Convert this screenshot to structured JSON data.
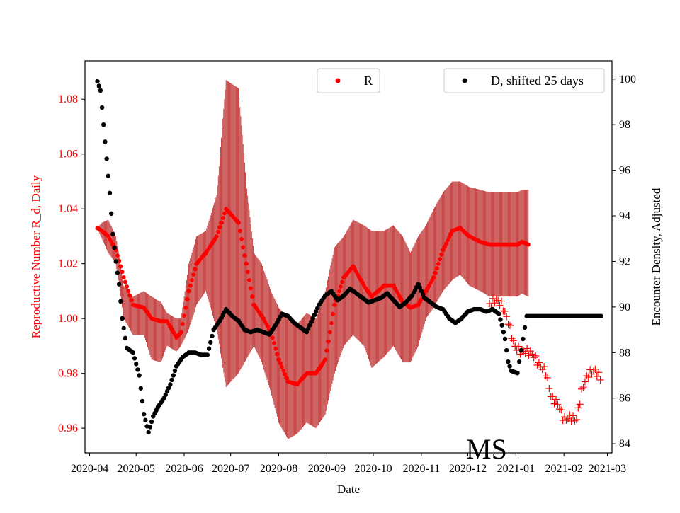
{
  "chart_data": {
    "type": "scatter",
    "title": "",
    "xlabel": "Date",
    "ylabel_left": "Reproductive Number R_d, Daily",
    "ylabel_right": "Encounter Density, Adjusted",
    "watermark": "MS",
    "colors": {
      "r": "#ff0000",
      "r_band": "#b00000",
      "d": "#000000",
      "left_axis": "#ff0000"
    },
    "x_ticks": [
      "2020-04",
      "2020-05",
      "2020-06",
      "2020-07",
      "2020-08",
      "2020-09",
      "2020-10",
      "2020-11",
      "2020-12",
      "2021-01",
      "2021-02",
      "2021-03"
    ],
    "xlim": [
      -3,
      337
    ],
    "ylim_left": [
      0.951,
      1.094
    ],
    "ylim_right": [
      83.6,
      100.8
    ],
    "y_ticks_left": [
      "0.96",
      "0.98",
      "1.00",
      "1.02",
      "1.04",
      "1.06",
      "1.08"
    ],
    "y_ticks_right": [
      "84",
      "86",
      "88",
      "90",
      "92",
      "94",
      "96",
      "98",
      "100"
    ],
    "legend": [
      {
        "label": "R",
        "position": "top-center",
        "marker": "dot-red"
      },
      {
        "label": "D, shifted 25 days",
        "position": "top-right",
        "marker": "dot-black"
      }
    ],
    "r_observed_curve": {
      "name": "R",
      "x": [
        5,
        8,
        12,
        17,
        22,
        28,
        35,
        40,
        46,
        50,
        56,
        59,
        64,
        69,
        75,
        82,
        88,
        96,
        101,
        106,
        111,
        117,
        122,
        128,
        134,
        140,
        146,
        152,
        158,
        164,
        170,
        177,
        182,
        186,
        190,
        196,
        202,
        207,
        212,
        217,
        222,
        228,
        234,
        239,
        245,
        252,
        258,
        264,
        270,
        276,
        279,
        283
      ],
      "y": [
        1.033,
        1.032,
        1.03,
        1.025,
        1.015,
        1.005,
        1.004,
        1.0,
        0.999,
        0.999,
        0.993,
        0.995,
        1.01,
        1.02,
        1.024,
        1.03,
        1.04,
        1.035,
        1.02,
        1.005,
        1.001,
        0.995,
        0.985,
        0.977,
        0.976,
        0.98,
        0.98,
        0.985,
        1.005,
        1.015,
        1.019,
        1.012,
        1.008,
        1.01,
        1.012,
        1.012,
        1.006,
        1.004,
        1.005,
        1.01,
        1.015,
        1.025,
        1.032,
        1.033,
        1.03,
        1.028,
        1.027,
        1.027,
        1.027,
        1.027,
        1.028,
        1.027
      ],
      "band_upper": [
        1.033,
        1.035,
        1.036,
        1.03,
        1.012,
        1.008,
        1.01,
        1.008,
        1.006,
        1.002,
        1.0,
        1.0,
        1.02,
        1.03,
        1.032,
        1.045,
        1.087,
        1.084,
        1.05,
        1.024,
        1.02,
        1.01,
        1.004,
        1.0,
        0.998,
        1.002,
        1.0,
        1.01,
        1.026,
        1.03,
        1.036,
        1.034,
        1.032,
        1.032,
        1.032,
        1.034,
        1.03,
        1.024,
        1.03,
        1.034,
        1.04,
        1.046,
        1.05,
        1.05,
        1.048,
        1.047,
        1.046,
        1.046,
        1.046,
        1.046,
        1.047,
        1.047
      ],
      "band_lower": [
        1.033,
        1.029,
        1.024,
        1.02,
        1.0,
        0.994,
        0.994,
        0.985,
        0.984,
        0.99,
        0.988,
        0.99,
        0.996,
        1.005,
        1.01,
        0.996,
        0.975,
        0.98,
        0.985,
        0.99,
        0.984,
        0.973,
        0.962,
        0.956,
        0.958,
        0.962,
        0.96,
        0.965,
        0.98,
        0.99,
        0.994,
        0.99,
        0.982,
        0.984,
        0.986,
        0.99,
        0.984,
        0.984,
        0.99,
        1.0,
        1.004,
        1.01,
        1.014,
        1.016,
        1.012,
        1.01,
        1.008,
        1.008,
        1.008,
        1.008,
        1.009,
        1.008
      ]
    },
    "r_projection": {
      "name": "R projected",
      "marker": "plus",
      "x": [
        258,
        262,
        266,
        270,
        274,
        278,
        282,
        286,
        290,
        294,
        298,
        302,
        306,
        310,
        314,
        318,
        322,
        326,
        330
      ],
      "y": [
        1.005,
        1.007,
        1.005,
        0.999,
        0.99,
        0.988,
        0.988,
        0.987,
        0.983,
        0.981,
        0.971,
        0.969,
        0.963,
        0.964,
        0.963,
        0.975,
        0.98,
        0.981,
        0.978
      ]
    },
    "d_shifted": {
      "name": "D, shifted 25 days",
      "x": [
        5,
        7,
        9,
        11,
        13,
        15,
        17,
        19,
        21,
        24,
        28,
        32,
        35,
        38,
        41,
        44,
        48,
        52,
        56,
        60,
        64,
        68,
        72,
        76,
        80,
        84,
        88,
        92,
        96,
        100,
        104,
        108,
        112,
        116,
        120,
        124,
        128,
        132,
        136,
        140,
        144,
        148,
        152,
        156,
        160,
        164,
        168,
        172,
        176,
        180,
        184,
        188,
        192,
        196,
        200,
        204,
        208,
        212,
        216,
        220,
        224,
        228,
        232,
        236,
        240,
        244,
        248,
        252,
        256,
        260,
        264,
        266,
        268,
        270,
        272,
        276,
        282,
        290,
        300,
        310,
        320,
        330
      ],
      "y": [
        99.9,
        99.5,
        98.0,
        96.5,
        95.0,
        93.2,
        92.0,
        91.0,
        89.5,
        88.2,
        88.0,
        87.0,
        85.3,
        84.5,
        85.2,
        85.6,
        86.0,
        86.6,
        87.4,
        87.8,
        88.0,
        88.0,
        87.9,
        87.9,
        89.0,
        89.4,
        89.9,
        89.6,
        89.4,
        89.0,
        88.9,
        89.0,
        88.9,
        88.8,
        89.2,
        89.7,
        89.6,
        89.3,
        89.1,
        88.9,
        89.5,
        90.1,
        90.5,
        90.7,
        90.3,
        90.5,
        90.8,
        90.6,
        90.4,
        90.2,
        90.3,
        90.4,
        90.6,
        90.3,
        90.0,
        90.2,
        90.5,
        91.0,
        90.4,
        90.2,
        90.0,
        89.9,
        89.5,
        89.3,
        89.5,
        89.8,
        89.9,
        89.9,
        89.8,
        89.9,
        89.7,
        89.2,
        88.6,
        87.6,
        87.2,
        87.1,
        89.6,
        89.6,
        89.6,
        89.6,
        89.6,
        89.6
      ]
    }
  }
}
